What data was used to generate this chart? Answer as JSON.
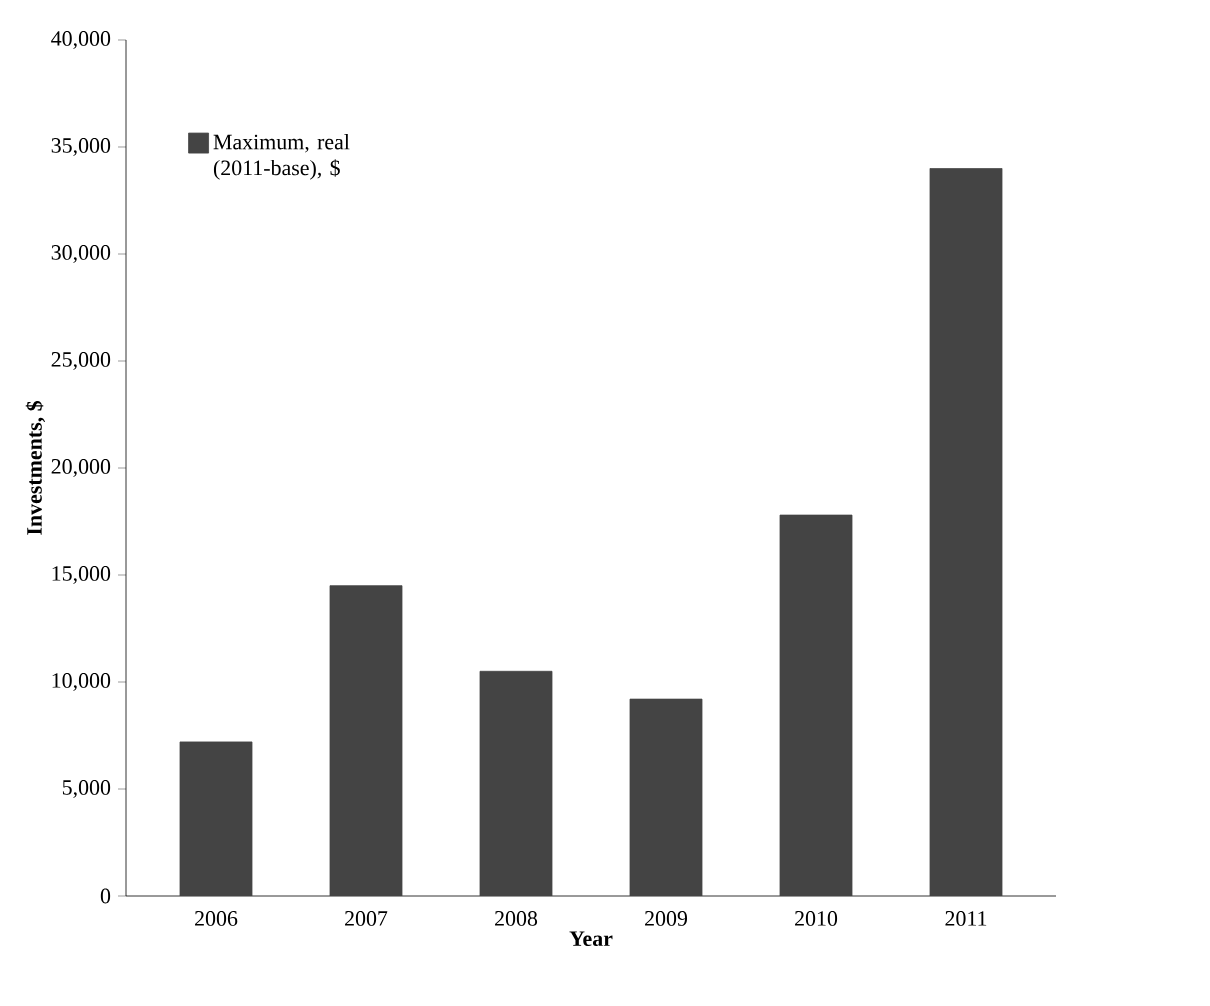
{
  "chart_data": {
    "type": "bar",
    "xlabel": "Year",
    "ylabel": "Investments, $",
    "categories": [
      "2006",
      "2007",
      "2008",
      "2009",
      "2010",
      "2011"
    ],
    "series": [
      {
        "name": "Maximum, real (2011-base), $",
        "color": "#444444",
        "values": [
          7200,
          14500,
          10500,
          9200,
          17800,
          34000
        ]
      }
    ],
    "ylim": [
      0,
      40000
    ],
    "yticks": [
      {
        "value": 0,
        "label": "0"
      },
      {
        "value": 5000,
        "label": "5,000"
      },
      {
        "value": 10000,
        "label": "10,000"
      },
      {
        "value": 15000,
        "label": "15,000"
      },
      {
        "value": 20000,
        "label": "20,000"
      },
      {
        "value": 25000,
        "label": "25,000"
      },
      {
        "value": 30000,
        "label": "30,000"
      },
      {
        "value": 35000,
        "label": "35,000"
      },
      {
        "value": 40000,
        "label": "40,000"
      }
    ],
    "grid": false,
    "legend": "top left"
  }
}
